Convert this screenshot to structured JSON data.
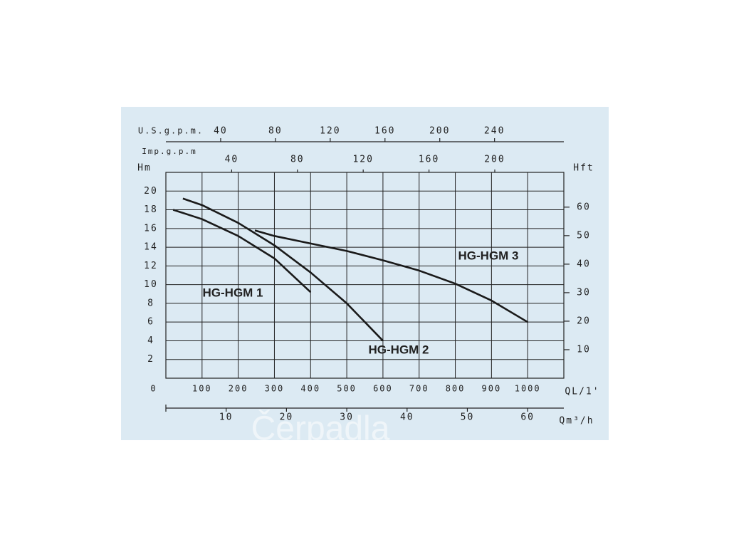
{
  "chart_data": {
    "type": "line",
    "watermark": "Čerpadla",
    "xlabel": "QL/1'",
    "ylabel": "Hm",
    "xlim": [
      0,
      1100
    ],
    "ylim": [
      0,
      22
    ],
    "xticks": [
      0,
      100,
      200,
      300,
      400,
      500,
      600,
      700,
      800,
      900,
      1000
    ],
    "yticks": [
      2,
      4,
      6,
      8,
      10,
      12,
      14,
      16,
      18,
      20
    ],
    "grid": true,
    "top_axes": [
      {
        "label": "U.S.g.p.m.",
        "lim": [
          0,
          290.6
        ],
        "ticks": [
          40,
          80,
          120,
          160,
          200,
          240
        ]
      },
      {
        "label": "Imp.g.p.m",
        "lim": [
          0,
          242
        ],
        "ticks": [
          40,
          80,
          120,
          160,
          200
        ]
      }
    ],
    "bottom_axis": {
      "label": "Qm³/h",
      "lim": [
        0,
        66
      ],
      "ticks": [
        10,
        20,
        30,
        40,
        50,
        60
      ]
    },
    "right_axis": {
      "label": "Hft",
      "lim": [
        0,
        72.2
      ],
      "ticks": [
        10,
        20,
        30,
        40,
        50,
        60
      ]
    },
    "series": [
      {
        "name": "HG-HGM 1",
        "color": "#1a1a1a",
        "x": [
          20,
          100,
          200,
          300,
          400
        ],
        "values": [
          18,
          17,
          15.2,
          12.8,
          9.2
        ]
      },
      {
        "name": "HG-HGM 2",
        "color": "#1a1a1a",
        "x": [
          47,
          100,
          200,
          300,
          400,
          500,
          600
        ],
        "values": [
          19.2,
          18.5,
          16.6,
          14.2,
          11.3,
          8,
          4
        ]
      },
      {
        "name": "HG-HGM 3",
        "color": "#1a1a1a",
        "x": [
          246,
          300,
          400,
          500,
          600,
          700,
          800,
          900,
          1000
        ],
        "values": [
          15.8,
          15.2,
          14.4,
          13.6,
          12.6,
          11.5,
          10.1,
          8.3,
          6
        ]
      }
    ]
  }
}
